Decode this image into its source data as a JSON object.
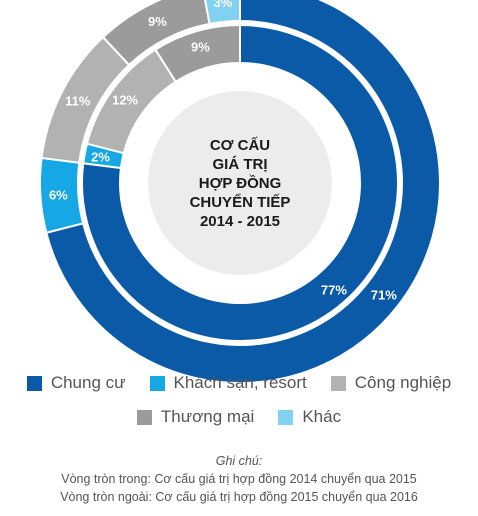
{
  "chart_data": {
    "type": "pie",
    "title": "CƠ CẤU GIÁ TRỊ HỢP ĐỒNG CHUYỂN TIẾP 2014 - 2015",
    "title_lines": [
      "CƠ CẤU",
      "GIÁ TRỊ",
      "HỢP ĐỒNG",
      "CHUYỂN TIẾP",
      "2014 - 2015"
    ],
    "categories": [
      "Chung cư",
      "Khách sạn, resort",
      "Công nghiệp",
      "Thương mại",
      "Khác"
    ],
    "colors": [
      "#0b5aa8",
      "#16a8e4",
      "#b2b2b2",
      "#9b9b9b",
      "#82d0f2"
    ],
    "series": [
      {
        "values": [
          77,
          2,
          12,
          9,
          0
        ],
        "labels": [
          "77%",
          "2%",
          "12%",
          "9%",
          ""
        ]
      },
      {
        "values": [
          71,
          6,
          11,
          9,
          3
        ],
        "labels": [
          "71%",
          "6%",
          "11%",
          "9%",
          "3%"
        ]
      }
    ],
    "legend_rows": [
      [
        "Chung cư",
        "Khách sạn, resort",
        "Công nghiệp"
      ],
      [
        "Thương mại",
        "Khác"
      ]
    ]
  },
  "notes": {
    "title": "Ghi chú:",
    "inner": "Vòng tròn trong: Cơ cấu giá trị hợp đồng 2014 chuyển qua 2015",
    "outer": "Vòng tròn ngoài: Cơ cấu giá trị hợp đồng 2015 chuyển qua 2016"
  }
}
